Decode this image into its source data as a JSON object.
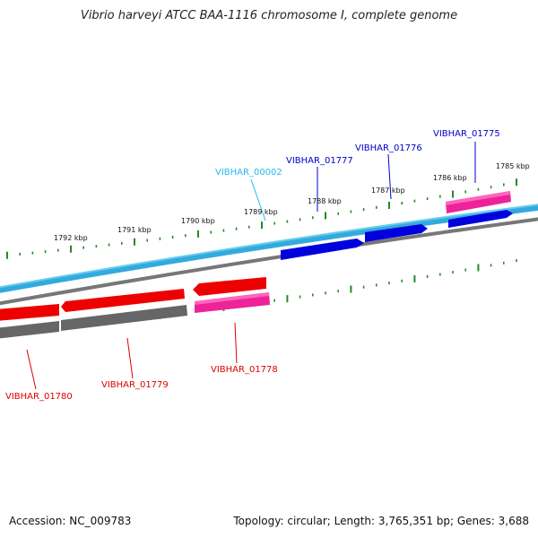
{
  "title": "Vibrio harveyi ATCC BAA-1116 chromosome I, complete genome",
  "footer": {
    "accession": "Accession: NC_009783",
    "stats": "Topology: circular; Length: 3,765,351 bp; Genes: 3,688"
  },
  "colors": {
    "forward_cds": "#0000dd",
    "reverse_cds": "#ee0000",
    "other_gene": "#ee2299",
    "forward_strand": "#33bbee",
    "reverse_strand": "#777777",
    "ticks": "#228b22",
    "pseudo_label": "#22bbee"
  },
  "ticks": [
    "1785 kbp",
    "1786 kbp",
    "1787 kbp",
    "1788 kbp",
    "1789 kbp",
    "1790 kbp",
    "1791 kbp",
    "1792 kbp"
  ],
  "genes_top": [
    {
      "label": "VIBHAR_01775",
      "color": "#0000cc"
    },
    {
      "label": "VIBHAR_01776",
      "color": "#0000cc"
    },
    {
      "label": "VIBHAR_01777",
      "color": "#0000cc"
    },
    {
      "label": "VIBHAR_00002",
      "color": "#22bbee"
    }
  ],
  "genes_bottom": [
    {
      "label": "VIBHAR_01778",
      "color": "#dd0000"
    },
    {
      "label": "VIBHAR_01779",
      "color": "#dd0000"
    },
    {
      "label": "VIBHAR_01780",
      "color": "#dd0000"
    }
  ]
}
